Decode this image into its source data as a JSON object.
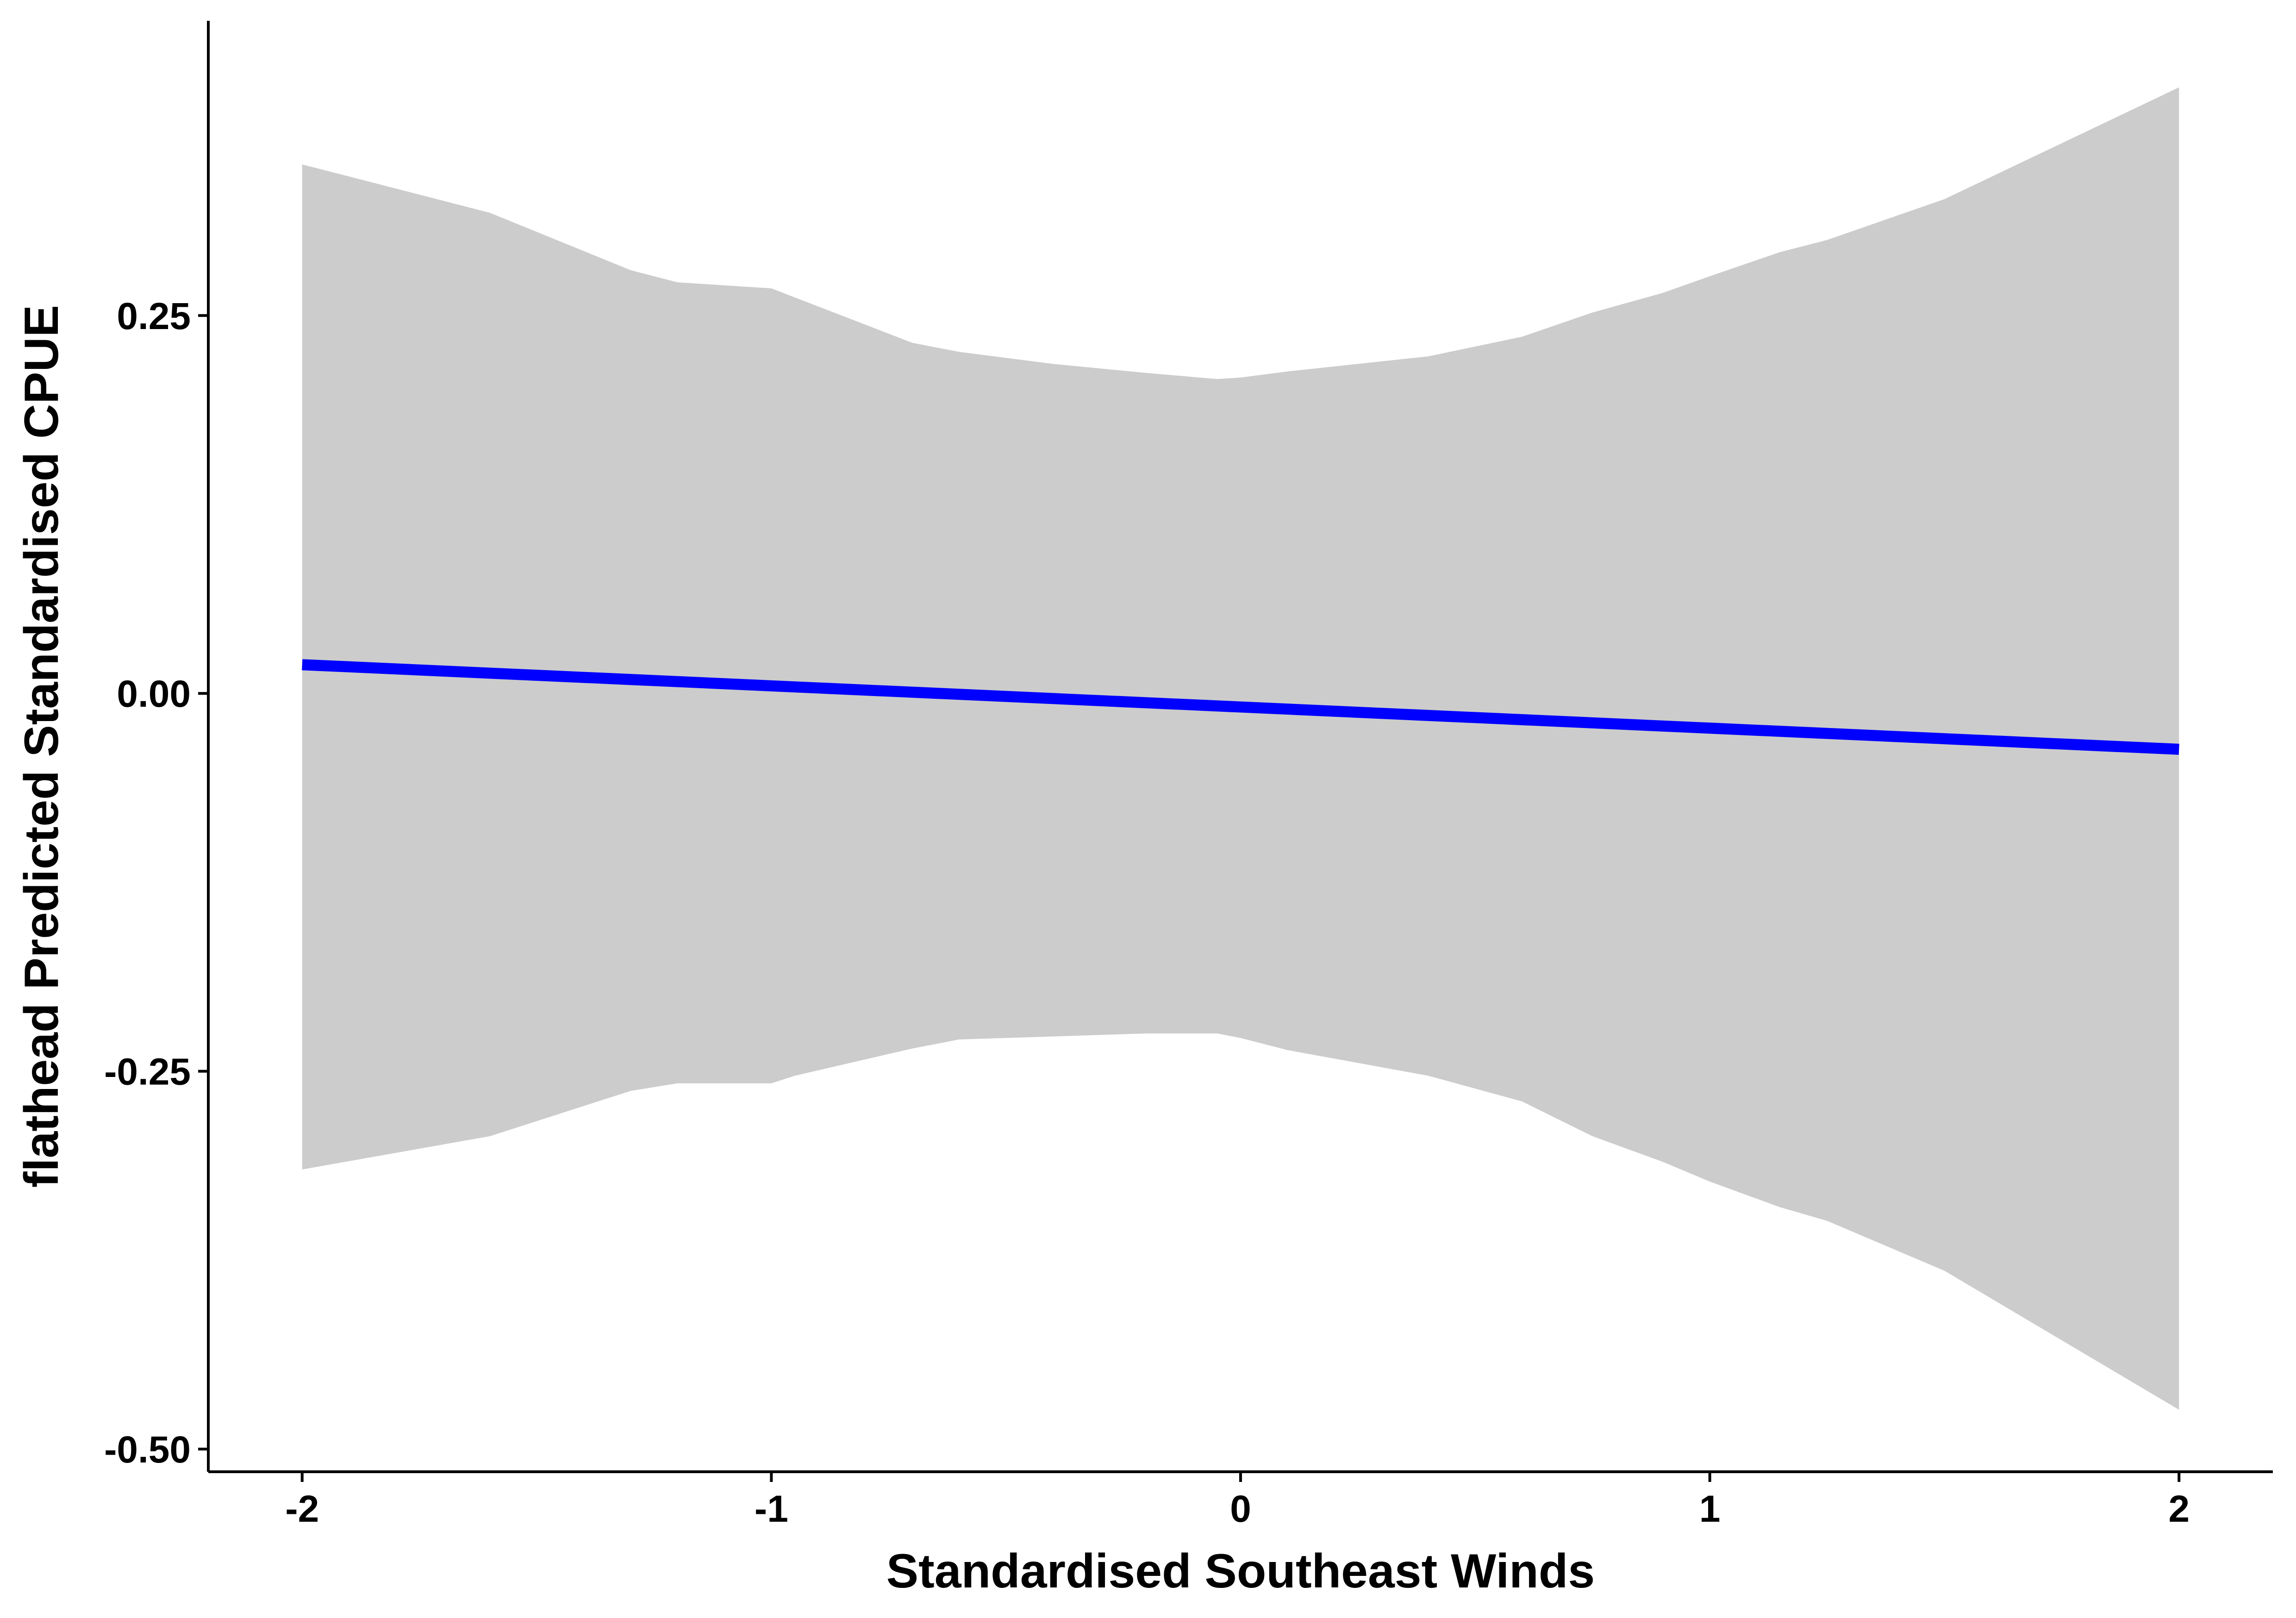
{
  "chart_data": {
    "type": "line",
    "xlabel": "Standardised Southeast Winds",
    "ylabel": "flathead Predicted Standardised CPUE",
    "xlim": [
      -2.2,
      2.2
    ],
    "ylim": [
      -0.515,
      0.445
    ],
    "x_ticks": [
      -2,
      -1,
      0,
      1,
      2
    ],
    "x_tick_labels": [
      "-2",
      "-1",
      "0",
      "1",
      "2"
    ],
    "y_ticks": [
      -0.5,
      -0.25,
      0,
      0.25
    ],
    "y_tick_labels": [
      "-0.50",
      "-0.25",
      "0.00",
      "0.25"
    ],
    "grid": false,
    "series": [
      {
        "line_color": "#0000ff",
        "x": [
          -2.0,
          2.0
        ],
        "y": [
          0.019,
          -0.037
        ]
      }
    ],
    "confidence_band": {
      "fill_color": "#cccccc",
      "x": [
        -2.0,
        -1.6,
        -1.3,
        -1.2,
        -1.0,
        -0.95,
        -0.7,
        -0.6,
        -0.4,
        -0.2,
        -0.05,
        0.0,
        0.1,
        0.4,
        0.6,
        0.75,
        0.9,
        1.0,
        1.15,
        1.25,
        1.5,
        2.0
      ],
      "upper": [
        0.35,
        0.318,
        0.28,
        0.272,
        0.268,
        0.262,
        0.232,
        0.226,
        0.218,
        0.212,
        0.208,
        0.209,
        0.213,
        0.223,
        0.236,
        0.252,
        0.265,
        0.276,
        0.292,
        0.3,
        0.327,
        0.401
      ],
      "lower": [
        -0.315,
        -0.293,
        -0.263,
        -0.258,
        -0.258,
        -0.253,
        -0.235,
        -0.229,
        -0.227,
        -0.225,
        -0.225,
        -0.228,
        -0.236,
        -0.253,
        -0.27,
        -0.293,
        -0.31,
        -0.323,
        -0.34,
        -0.349,
        -0.382,
        -0.474
      ]
    }
  }
}
